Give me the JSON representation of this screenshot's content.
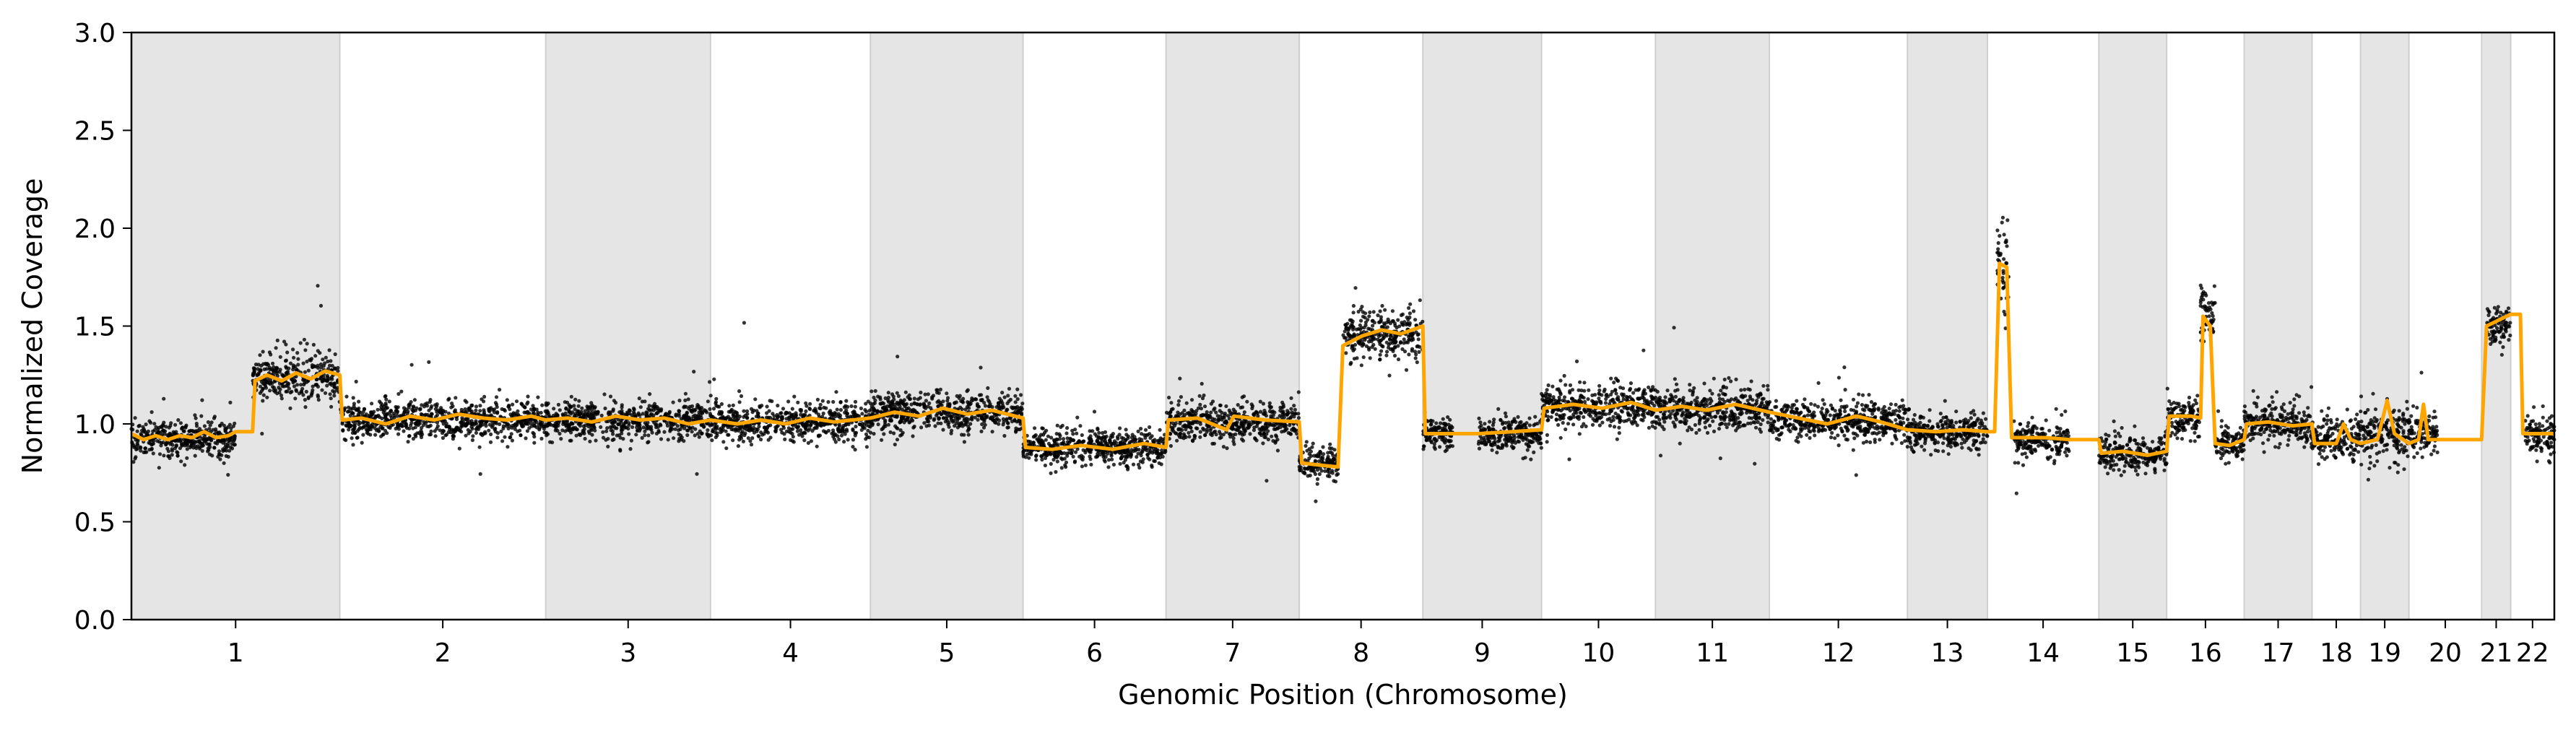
{
  "chart_data": {
    "type": "scatter",
    "title": "",
    "xlabel": "Genomic Position (Chromosome)",
    "ylabel": "Normalized Coverage",
    "ylim": [
      0,
      3.0
    ],
    "yticks": [
      "0.0",
      "0.5",
      "1.0",
      "1.5",
      "2.0",
      "2.5",
      "3.0"
    ],
    "grid": false,
    "legend": "none",
    "chromosomes": [
      {
        "label": "1",
        "start": 0.0,
        "end": 0.086,
        "shaded": true
      },
      {
        "label": "2",
        "start": 0.086,
        "end": 0.171,
        "shaded": false
      },
      {
        "label": "3",
        "start": 0.171,
        "end": 0.239,
        "shaded": true
      },
      {
        "label": "4",
        "start": 0.239,
        "end": 0.305,
        "shaded": false
      },
      {
        "label": "5",
        "start": 0.305,
        "end": 0.368,
        "shaded": true
      },
      {
        "label": "6",
        "start": 0.368,
        "end": 0.427,
        "shaded": false
      },
      {
        "label": "7",
        "start": 0.427,
        "end": 0.482,
        "shaded": true
      },
      {
        "label": "8",
        "start": 0.482,
        "end": 0.533,
        "shaded": false
      },
      {
        "label": "9",
        "start": 0.533,
        "end": 0.582,
        "shaded": true
      },
      {
        "label": "10",
        "start": 0.582,
        "end": 0.629,
        "shaded": false
      },
      {
        "label": "11",
        "start": 0.629,
        "end": 0.676,
        "shaded": true
      },
      {
        "label": "12",
        "start": 0.676,
        "end": 0.733,
        "shaded": false
      },
      {
        "label": "13",
        "start": 0.733,
        "end": 0.766,
        "shaded": true
      },
      {
        "label": "14",
        "start": 0.766,
        "end": 0.812,
        "shaded": false
      },
      {
        "label": "15",
        "start": 0.812,
        "end": 0.84,
        "shaded": true
      },
      {
        "label": "16",
        "start": 0.84,
        "end": 0.872,
        "shaded": false
      },
      {
        "label": "17",
        "start": 0.872,
        "end": 0.9,
        "shaded": true
      },
      {
        "label": "18",
        "start": 0.9,
        "end": 0.92,
        "shaded": false
      },
      {
        "label": "19",
        "start": 0.92,
        "end": 0.94,
        "shaded": true
      },
      {
        "label": "20",
        "start": 0.94,
        "end": 0.97,
        "shaded": false
      },
      {
        "label": "21",
        "start": 0.97,
        "end": 0.982,
        "shaded": true
      },
      {
        "label": "22",
        "start": 0.982,
        "end": 1.0,
        "shaded": false
      }
    ],
    "series": [
      {
        "style": "scatter",
        "color": "#000000",
        "segments": [
          {
            "x0": 0.0,
            "x1": 0.043,
            "mean": 0.93,
            "sd": 0.045
          },
          {
            "x0": 0.05,
            "x1": 0.086,
            "mean": 1.24,
            "sd": 0.06
          },
          {
            "x0": 0.086,
            "x1": 0.171,
            "mean": 1.02,
            "sd": 0.05
          },
          {
            "x0": 0.171,
            "x1": 0.239,
            "mean": 1.02,
            "sd": 0.05
          },
          {
            "x0": 0.239,
            "x1": 0.305,
            "mean": 1.01,
            "sd": 0.05
          },
          {
            "x0": 0.305,
            "x1": 0.368,
            "mean": 1.06,
            "sd": 0.05
          },
          {
            "x0": 0.368,
            "x1": 0.427,
            "mean": 0.88,
            "sd": 0.045
          },
          {
            "x0": 0.427,
            "x1": 0.482,
            "mean": 1.01,
            "sd": 0.05
          },
          {
            "x0": 0.482,
            "x1": 0.498,
            "mean": 0.8,
            "sd": 0.04
          },
          {
            "x0": 0.5,
            "x1": 0.533,
            "mean": 1.46,
            "sd": 0.06
          },
          {
            "x0": 0.533,
            "x1": 0.546,
            "mean": 0.95,
            "sd": 0.045
          },
          {
            "x0": 0.556,
            "x1": 0.582,
            "mean": 0.95,
            "sd": 0.045
          },
          {
            "x0": 0.582,
            "x1": 0.629,
            "mean": 1.09,
            "sd": 0.055
          },
          {
            "x0": 0.629,
            "x1": 0.676,
            "mean": 1.08,
            "sd": 0.055
          },
          {
            "x0": 0.676,
            "x1": 0.733,
            "mean": 1.02,
            "sd": 0.05
          },
          {
            "x0": 0.733,
            "x1": 0.766,
            "mean": 0.96,
            "sd": 0.045
          },
          {
            "x0": 0.77,
            "x1": 0.775,
            "mean": 1.85,
            "sd": 0.12
          },
          {
            "x0": 0.777,
            "x1": 0.8,
            "mean": 0.92,
            "sd": 0.045
          },
          {
            "x0": 0.812,
            "x1": 0.84,
            "mean": 0.85,
            "sd": 0.045
          },
          {
            "x0": 0.84,
            "x1": 0.854,
            "mean": 1.04,
            "sd": 0.05
          },
          {
            "x0": 0.854,
            "x1": 0.86,
            "mean": 1.55,
            "sd": 0.09
          },
          {
            "x0": 0.86,
            "x1": 0.872,
            "mean": 0.9,
            "sd": 0.045
          },
          {
            "x0": 0.872,
            "x1": 0.9,
            "mean": 1.0,
            "sd": 0.05
          },
          {
            "x0": 0.9,
            "x1": 0.92,
            "mean": 0.93,
            "sd": 0.05
          },
          {
            "x0": 0.92,
            "x1": 0.94,
            "mean": 0.95,
            "sd": 0.08
          },
          {
            "x0": 0.94,
            "x1": 0.952,
            "mean": 0.95,
            "sd": 0.05
          },
          {
            "x0": 0.972,
            "x1": 0.982,
            "mean": 1.5,
            "sd": 0.06
          },
          {
            "x0": 0.988,
            "x1": 1.0,
            "mean": 0.95,
            "sd": 0.05
          }
        ]
      },
      {
        "style": "line",
        "color": "#FFA500",
        "points": [
          [
            0.0,
            0.95
          ],
          [
            0.005,
            0.92
          ],
          [
            0.01,
            0.94
          ],
          [
            0.015,
            0.92
          ],
          [
            0.02,
            0.94
          ],
          [
            0.025,
            0.93
          ],
          [
            0.03,
            0.96
          ],
          [
            0.035,
            0.93
          ],
          [
            0.04,
            0.94
          ],
          [
            0.043,
            0.96
          ],
          [
            0.05,
            0.96
          ],
          [
            0.051,
            1.22
          ],
          [
            0.056,
            1.25
          ],
          [
            0.062,
            1.22
          ],
          [
            0.068,
            1.26
          ],
          [
            0.074,
            1.23
          ],
          [
            0.08,
            1.27
          ],
          [
            0.086,
            1.25
          ],
          [
            0.087,
            1.02
          ],
          [
            0.095,
            1.03
          ],
          [
            0.105,
            1.0
          ],
          [
            0.115,
            1.04
          ],
          [
            0.125,
            1.02
          ],
          [
            0.135,
            1.05
          ],
          [
            0.145,
            1.03
          ],
          [
            0.155,
            1.02
          ],
          [
            0.165,
            1.04
          ],
          [
            0.171,
            1.02
          ],
          [
            0.18,
            1.03
          ],
          [
            0.19,
            1.01
          ],
          [
            0.2,
            1.04
          ],
          [
            0.21,
            1.02
          ],
          [
            0.22,
            1.03
          ],
          [
            0.23,
            1.0
          ],
          [
            0.239,
            1.02
          ],
          [
            0.25,
            1.0
          ],
          [
            0.26,
            1.02
          ],
          [
            0.27,
            1.0
          ],
          [
            0.28,
            1.03
          ],
          [
            0.29,
            1.01
          ],
          [
            0.305,
            1.03
          ],
          [
            0.315,
            1.06
          ],
          [
            0.325,
            1.04
          ],
          [
            0.335,
            1.08
          ],
          [
            0.345,
            1.05
          ],
          [
            0.355,
            1.07
          ],
          [
            0.368,
            1.03
          ],
          [
            0.369,
            0.88
          ],
          [
            0.38,
            0.87
          ],
          [
            0.392,
            0.89
          ],
          [
            0.405,
            0.87
          ],
          [
            0.418,
            0.9
          ],
          [
            0.427,
            0.88
          ],
          [
            0.428,
            1.02
          ],
          [
            0.44,
            1.03
          ],
          [
            0.452,
            0.97
          ],
          [
            0.455,
            1.04
          ],
          [
            0.468,
            1.02
          ],
          [
            0.482,
            1.01
          ],
          [
            0.483,
            0.8
          ],
          [
            0.49,
            0.79
          ],
          [
            0.498,
            0.78
          ],
          [
            0.5,
            1.4
          ],
          [
            0.508,
            1.45
          ],
          [
            0.516,
            1.48
          ],
          [
            0.524,
            1.46
          ],
          [
            0.533,
            1.5
          ],
          [
            0.534,
            0.95
          ],
          [
            0.546,
            0.95
          ],
          [
            0.556,
            0.95
          ],
          [
            0.57,
            0.96
          ],
          [
            0.582,
            0.97
          ],
          [
            0.583,
            1.08
          ],
          [
            0.595,
            1.1
          ],
          [
            0.607,
            1.08
          ],
          [
            0.619,
            1.11
          ],
          [
            0.629,
            1.07
          ],
          [
            0.64,
            1.09
          ],
          [
            0.65,
            1.07
          ],
          [
            0.662,
            1.1
          ],
          [
            0.676,
            1.06
          ],
          [
            0.688,
            1.03
          ],
          [
            0.7,
            1.0
          ],
          [
            0.712,
            1.04
          ],
          [
            0.722,
            1.01
          ],
          [
            0.733,
            0.97
          ],
          [
            0.745,
            0.96
          ],
          [
            0.756,
            0.97
          ],
          [
            0.766,
            0.96
          ],
          [
            0.769,
            0.96
          ],
          [
            0.771,
            1.82
          ],
          [
            0.774,
            1.8
          ],
          [
            0.776,
            0.93
          ],
          [
            0.79,
            0.93
          ],
          [
            0.8,
            0.92
          ],
          [
            0.812,
            0.92
          ],
          [
            0.813,
            0.85
          ],
          [
            0.822,
            0.86
          ],
          [
            0.832,
            0.84
          ],
          [
            0.84,
            0.86
          ],
          [
            0.841,
            1.04
          ],
          [
            0.85,
            1.04
          ],
          [
            0.854,
            1.03
          ],
          [
            0.855,
            1.55
          ],
          [
            0.858,
            1.5
          ],
          [
            0.86,
            0.9
          ],
          [
            0.866,
            0.89
          ],
          [
            0.872,
            0.92
          ],
          [
            0.873,
            1.0
          ],
          [
            0.882,
            1.01
          ],
          [
            0.892,
            0.99
          ],
          [
            0.9,
            1.0
          ],
          [
            0.901,
            0.9
          ],
          [
            0.91,
            0.9
          ],
          [
            0.913,
            1.0
          ],
          [
            0.916,
            0.92
          ],
          [
            0.92,
            0.9
          ],
          [
            0.927,
            0.92
          ],
          [
            0.931,
            1.12
          ],
          [
            0.934,
            0.95
          ],
          [
            0.94,
            0.9
          ],
          [
            0.944,
            0.92
          ],
          [
            0.946,
            1.1
          ],
          [
            0.948,
            0.92
          ],
          [
            0.952,
            0.92
          ],
          [
            0.97,
            0.92
          ],
          [
            0.972,
            1.5
          ],
          [
            0.977,
            1.53
          ],
          [
            0.982,
            1.56
          ],
          [
            0.986,
            1.56
          ],
          [
            0.987,
            0.95
          ],
          [
            1.0,
            0.95
          ]
        ]
      }
    ]
  }
}
